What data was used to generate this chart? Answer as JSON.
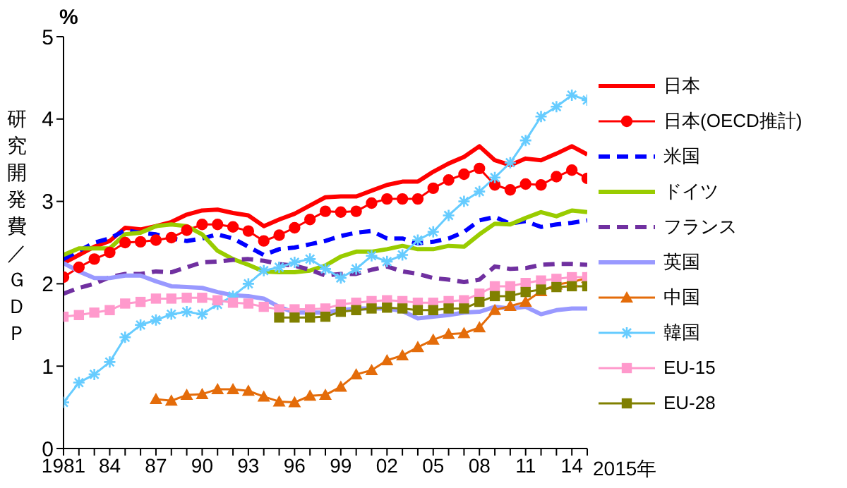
{
  "chart_data": {
    "type": "line",
    "ylabel": "研究開発費／ＧＤＰ",
    "xlabel": "2015年",
    "annotations": [
      "%"
    ],
    "x": [
      1981,
      1982,
      1983,
      1984,
      1985,
      1986,
      1987,
      1988,
      1989,
      1990,
      1991,
      1992,
      1993,
      1994,
      1995,
      1996,
      1997,
      1998,
      1999,
      2000,
      2001,
      2002,
      2003,
      2004,
      2005,
      2006,
      2007,
      2008,
      2009,
      2010,
      2011,
      2012,
      2013,
      2014,
      2015
    ],
    "xlim": [
      1981,
      2015
    ],
    "xticks": [
      1981,
      {
        "value": 1982,
        "label": null
      },
      {
        "value": 1983,
        "label": null
      },
      {
        "value": 1984,
        "label": "84"
      },
      {
        "value": 1985,
        "label": null
      },
      {
        "value": 1986,
        "label": null
      },
      {
        "value": 1987,
        "label": "87"
      },
      {
        "value": 1988,
        "label": null
      },
      {
        "value": 1989,
        "label": null
      },
      {
        "value": 1990,
        "label": "90"
      },
      {
        "value": 1991,
        "label": null
      },
      {
        "value": 1992,
        "label": null
      },
      {
        "value": 1993,
        "label": "93"
      },
      {
        "value": 1994,
        "label": null
      },
      {
        "value": 1995,
        "label": null
      },
      {
        "value": 1996,
        "label": "96"
      },
      {
        "value": 1997,
        "label": null
      },
      {
        "value": 1998,
        "label": null
      },
      {
        "value": 1999,
        "label": "99"
      },
      {
        "value": 2000,
        "label": null
      },
      {
        "value": 2001,
        "label": null
      },
      {
        "value": 2002,
        "label": "02"
      },
      {
        "value": 2003,
        "label": null
      },
      {
        "value": 2004,
        "label": null
      },
      {
        "value": 2005,
        "label": "05"
      },
      {
        "value": 2006,
        "label": null
      },
      {
        "value": 2007,
        "label": null
      },
      {
        "value": 2008,
        "label": "08"
      },
      {
        "value": 2009,
        "label": null
      },
      {
        "value": 2010,
        "label": null
      },
      {
        "value": 2011,
        "label": "11"
      },
      {
        "value": 2012,
        "label": null
      },
      {
        "value": 2013,
        "label": null
      },
      {
        "value": 2014,
        "label": "14"
      },
      {
        "value": 2015,
        "label": null
      }
    ],
    "ylim": [
      0,
      5
    ],
    "yticks": [
      0,
      1,
      2,
      3,
      4,
      5
    ],
    "legend": "right",
    "series": [
      {
        "name": "日本",
        "color": "#ff0000",
        "marker": "none",
        "line_style": "solid",
        "values": [
          2.25,
          2.35,
          2.45,
          2.52,
          2.68,
          2.66,
          2.7,
          2.75,
          2.84,
          2.89,
          2.9,
          2.86,
          2.83,
          2.7,
          2.78,
          2.85,
          2.95,
          3.05,
          3.06,
          3.06,
          3.13,
          3.2,
          3.24,
          3.24,
          3.36,
          3.46,
          3.54,
          3.67,
          3.5,
          3.44,
          3.52,
          3.5,
          3.58,
          3.67,
          3.57
        ]
      },
      {
        "name": "日本(OECD推計)",
        "color": "#ff0000",
        "marker": "circle",
        "line_style": "solid",
        "values": [
          2.08,
          2.2,
          2.3,
          2.38,
          2.5,
          2.51,
          2.53,
          2.56,
          2.65,
          2.72,
          2.72,
          2.69,
          2.64,
          2.52,
          2.59,
          2.68,
          2.78,
          2.88,
          2.87,
          2.88,
          2.98,
          3.03,
          3.03,
          3.03,
          3.16,
          3.26,
          3.33,
          3.4,
          3.2,
          3.14,
          3.21,
          3.2,
          3.3,
          3.38,
          3.28
        ]
      },
      {
        "name": "米国",
        "color": "#0000ff",
        "marker": "none",
        "line_style": "dashed",
        "values": [
          2.3,
          2.4,
          2.5,
          2.55,
          2.65,
          2.62,
          2.6,
          2.55,
          2.52,
          2.55,
          2.6,
          2.55,
          2.45,
          2.35,
          2.42,
          2.44,
          2.48,
          2.52,
          2.58,
          2.62,
          2.64,
          2.55,
          2.55,
          2.49,
          2.51,
          2.55,
          2.63,
          2.77,
          2.81,
          2.73,
          2.76,
          2.69,
          2.72,
          2.74,
          2.77
        ]
      },
      {
        "name": "ドイツ",
        "color": "#99cc00",
        "marker": "none",
        "line_style": "solid",
        "values": [
          2.35,
          2.43,
          2.43,
          2.43,
          2.6,
          2.62,
          2.7,
          2.72,
          2.7,
          2.6,
          2.4,
          2.3,
          2.23,
          2.15,
          2.14,
          2.14,
          2.16,
          2.22,
          2.33,
          2.39,
          2.39,
          2.42,
          2.46,
          2.42,
          2.42,
          2.46,
          2.45,
          2.6,
          2.73,
          2.72,
          2.8,
          2.87,
          2.82,
          2.89,
          2.87
        ]
      },
      {
        "name": "フランス",
        "color": "#7030a0",
        "marker": "none",
        "line_style": "dashed",
        "values": [
          1.88,
          1.95,
          2.0,
          2.08,
          2.12,
          2.12,
          2.15,
          2.14,
          2.2,
          2.26,
          2.27,
          2.29,
          2.3,
          2.28,
          2.24,
          2.22,
          2.17,
          2.1,
          2.12,
          2.12,
          2.17,
          2.21,
          2.15,
          2.12,
          2.07,
          2.05,
          2.02,
          2.05,
          2.21,
          2.18,
          2.19,
          2.23,
          2.24,
          2.24,
          2.23
        ]
      },
      {
        "name": "英国",
        "color": "#9999ff",
        "marker": "none",
        "line_style": "solid",
        "values": [
          2.25,
          2.15,
          2.07,
          2.07,
          2.1,
          2.1,
          2.03,
          1.97,
          1.96,
          1.95,
          1.9,
          1.86,
          1.85,
          1.82,
          1.72,
          1.65,
          1.65,
          1.65,
          1.68,
          1.7,
          1.7,
          1.7,
          1.67,
          1.58,
          1.6,
          1.62,
          1.65,
          1.66,
          1.72,
          1.7,
          1.72,
          1.63,
          1.68,
          1.7,
          1.7
        ]
      },
      {
        "name": "中国",
        "color": "#e46c0a",
        "marker": "triangle",
        "line_style": "solid",
        "values": [
          null,
          null,
          null,
          null,
          null,
          null,
          0.6,
          0.58,
          0.65,
          0.66,
          0.72,
          0.72,
          0.7,
          0.63,
          0.57,
          0.56,
          0.64,
          0.65,
          0.75,
          0.9,
          0.95,
          1.07,
          1.13,
          1.23,
          1.32,
          1.39,
          1.4,
          1.47,
          1.68,
          1.73,
          1.78,
          1.91,
          1.99,
          2.02,
          2.07
        ]
      },
      {
        "name": "韓国",
        "color": "#66ccff",
        "marker": "cross",
        "line_style": "solid",
        "values": [
          0.56,
          0.8,
          0.9,
          1.05,
          1.35,
          1.5,
          1.56,
          1.63,
          1.66,
          1.63,
          1.75,
          1.85,
          2.0,
          2.16,
          2.2,
          2.26,
          2.3,
          2.18,
          2.07,
          2.18,
          2.34,
          2.27,
          2.35,
          2.53,
          2.63,
          2.83,
          3.0,
          3.12,
          3.29,
          3.47,
          3.74,
          4.03,
          4.15,
          4.29,
          4.23
        ]
      },
      {
        "name": "EU-15",
        "color": "#ff99cc",
        "marker": "square",
        "line_style": "solid",
        "values": [
          1.6,
          1.62,
          1.65,
          1.68,
          1.76,
          1.78,
          1.82,
          1.82,
          1.83,
          1.83,
          1.8,
          1.77,
          1.76,
          1.72,
          1.69,
          1.69,
          1.69,
          1.7,
          1.75,
          1.77,
          1.79,
          1.8,
          1.79,
          1.77,
          1.77,
          1.79,
          1.8,
          1.88,
          1.97,
          1.97,
          2.01,
          2.04,
          2.06,
          2.08,
          2.08
        ]
      },
      {
        "name": "EU-28",
        "color": "#808000",
        "marker": "square",
        "line_style": "solid",
        "values": [
          null,
          null,
          null,
          null,
          null,
          null,
          null,
          null,
          null,
          null,
          null,
          null,
          null,
          null,
          1.59,
          1.59,
          1.59,
          1.6,
          1.66,
          1.68,
          1.7,
          1.71,
          1.7,
          1.68,
          1.68,
          1.7,
          1.7,
          1.78,
          1.85,
          1.85,
          1.9,
          1.93,
          1.96,
          1.97,
          1.97
        ]
      }
    ]
  }
}
